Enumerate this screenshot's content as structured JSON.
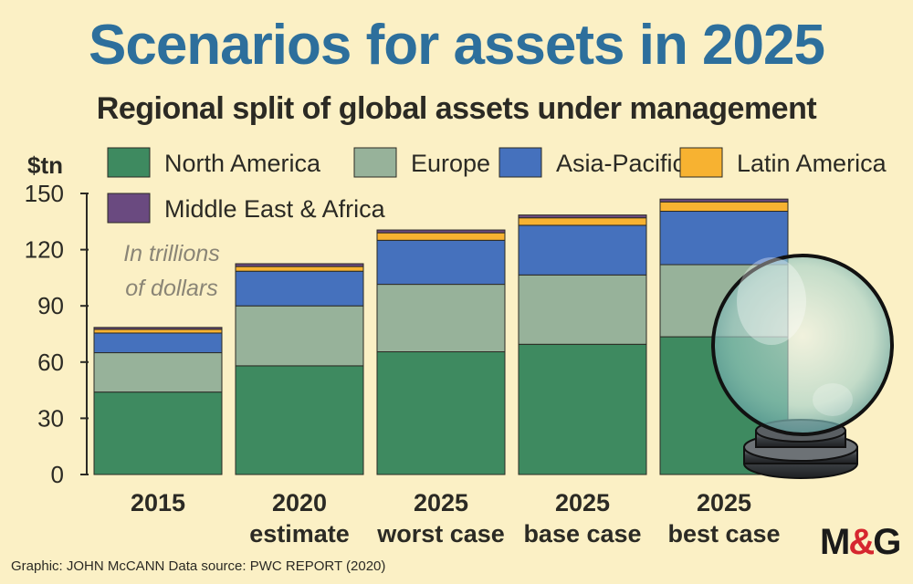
{
  "title": "Scenarios for assets in 2025",
  "subtitle": "Regional split of global assets under management",
  "source": "Graphic: JOHN McCANN  Data source: PWC REPORT (2020)",
  "logo": "M&G",
  "colors": {
    "North America": "#3e8a60",
    "Europe": "#97b29a",
    "Asia-Pacific": "#4571bd",
    "Latin America": "#f7b231",
    "Middle East & Africa": "#6a4a80"
  },
  "chart_data": {
    "type": "bar",
    "stacked": true,
    "ylabel": "$tn",
    "annotation": "In trillions of dollars",
    "ylim": [
      0,
      150
    ],
    "yticks": [
      0,
      30,
      60,
      90,
      120,
      150
    ],
    "categories": [
      [
        "2015"
      ],
      [
        "2020",
        "estimate"
      ],
      [
        "2025",
        "worst case"
      ],
      [
        "2025",
        "base case"
      ],
      [
        "2025",
        "best case"
      ]
    ],
    "series": [
      {
        "name": "North America",
        "values": [
          44,
          58,
          65.5,
          69.5,
          73.5
        ]
      },
      {
        "name": "Europe",
        "values": [
          21,
          32,
          36,
          37,
          38.5
        ]
      },
      {
        "name": "Asia-Pacific",
        "values": [
          10.5,
          18.5,
          23.5,
          26.5,
          28.5
        ]
      },
      {
        "name": "Latin America",
        "values": [
          2,
          2.5,
          4,
          4,
          5
        ]
      },
      {
        "name": "Middle East & Africa",
        "values": [
          1,
          1.5,
          1.5,
          1.5,
          1.5
        ]
      }
    ],
    "legend_position": "top"
  }
}
